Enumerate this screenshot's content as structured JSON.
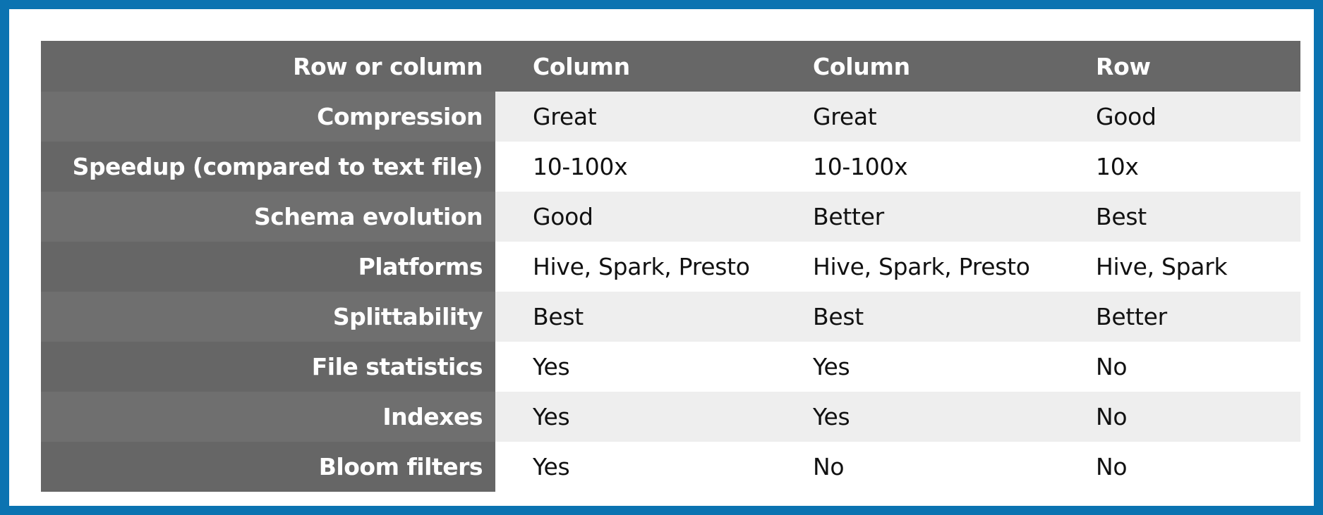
{
  "colors": {
    "border": "#0b73b1",
    "header_bg": "#676767",
    "stripe": "#eeeeee"
  },
  "header": {
    "label": "Row or column",
    "cols": [
      "Column",
      "Column",
      "Row"
    ]
  },
  "rows": [
    {
      "label": "Compression",
      "values": [
        "Great",
        "Great",
        "Good"
      ]
    },
    {
      "label": "Speedup (compared to text file)",
      "values": [
        "10-100x",
        "10-100x",
        "10x"
      ]
    },
    {
      "label": "Schema evolution",
      "values": [
        "Good",
        "Better",
        "Best"
      ]
    },
    {
      "label": "Platforms",
      "values": [
        "Hive, Spark, Presto",
        "Hive, Spark, Presto",
        "Hive, Spark"
      ]
    },
    {
      "label": "Splittability",
      "values": [
        "Best",
        "Best",
        "Better"
      ]
    },
    {
      "label": "File statistics",
      "values": [
        "Yes",
        "Yes",
        "No"
      ]
    },
    {
      "label": "Indexes",
      "values": [
        "Yes",
        "Yes",
        "No"
      ]
    },
    {
      "label": "Bloom filters",
      "values": [
        "Yes",
        "No",
        "No"
      ]
    }
  ]
}
